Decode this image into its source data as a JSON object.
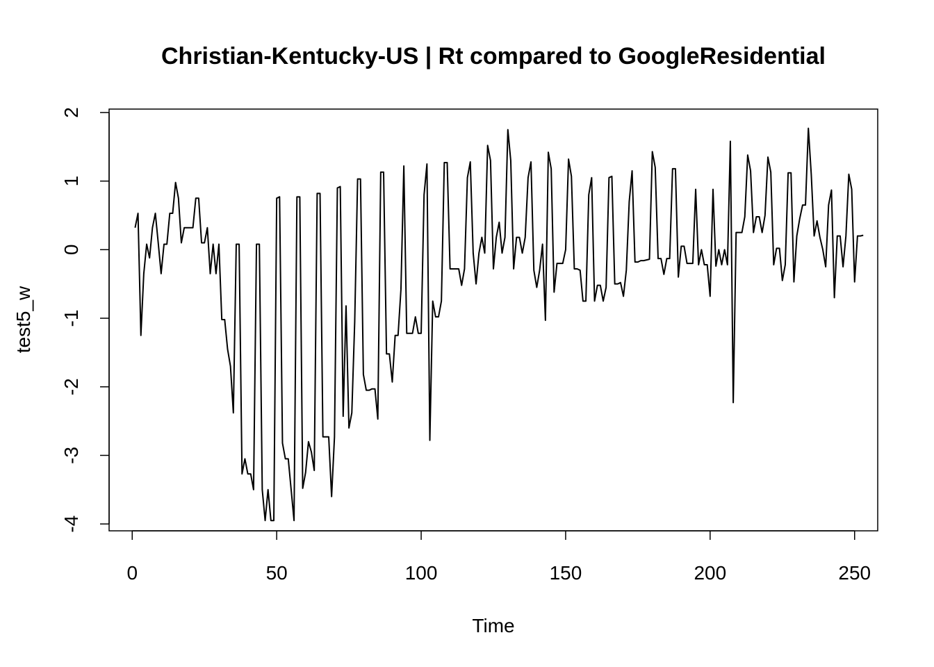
{
  "chart_data": {
    "type": "line",
    "title": "Christian-Kentucky-US | Rt compared to GoogleResidential",
    "xlabel": "Time",
    "ylabel": "test5_w",
    "xlim": [
      -8,
      258
    ],
    "ylim": [
      -4.1,
      2.05
    ],
    "x_ticks": [
      0,
      50,
      100,
      150,
      200,
      250
    ],
    "y_ticks": [
      -4,
      -3,
      -2,
      -1,
      0,
      1,
      2
    ],
    "x_tick_labels": [
      "0",
      "50",
      "100",
      "150",
      "200",
      "250"
    ],
    "y_tick_labels": [
      "-4",
      "-3",
      "-2",
      "-1",
      "0",
      "1",
      "2"
    ],
    "grid": false,
    "legend": "none",
    "line_color": "#000000",
    "x_start": 1,
    "series": [
      {
        "values": [
          0.32,
          0.53,
          -1.25,
          -0.35,
          0.08,
          -0.12,
          0.32,
          0.53,
          0.1,
          -0.35,
          0.08,
          0.08,
          0.53,
          0.53,
          0.98,
          0.75,
          0.1,
          0.32,
          0.32,
          0.32,
          0.32,
          0.75,
          0.75,
          0.1,
          0.1,
          0.32,
          -0.35,
          0.08,
          -0.35,
          0.08,
          -1.02,
          -1.02,
          -1.45,
          -1.7,
          -2.38,
          0.08,
          0.08,
          -3.27,
          -3.05,
          -3.27,
          -3.27,
          -3.5,
          0.08,
          0.08,
          -3.5,
          -3.95,
          -3.5,
          -3.95,
          -3.95,
          0.75,
          0.77,
          -2.82,
          -3.05,
          -3.05,
          -3.5,
          -3.95,
          0.77,
          0.77,
          -3.48,
          -3.25,
          -2.8,
          -2.95,
          -3.22,
          0.82,
          0.82,
          -2.73,
          -2.73,
          -2.73,
          -3.6,
          -2.73,
          0.9,
          0.92,
          -2.43,
          -0.82,
          -2.6,
          -2.38,
          -1.05,
          1.03,
          1.03,
          -1.82,
          -2.05,
          -2.05,
          -2.03,
          -2.03,
          -2.47,
          1.13,
          1.13,
          -1.52,
          -1.52,
          -1.93,
          -1.25,
          -1.25,
          -0.58,
          1.22,
          -1.22,
          -1.22,
          -1.22,
          -0.98,
          -1.22,
          -1.22,
          0.8,
          1.25,
          -2.78,
          -0.75,
          -0.98,
          -0.98,
          -0.75,
          1.27,
          1.27,
          -0.28,
          -0.28,
          -0.28,
          -0.28,
          -0.52,
          -0.28,
          1.05,
          1.28,
          -0.05,
          -0.5,
          -0.05,
          0.18,
          -0.05,
          1.52,
          1.3,
          -0.28,
          0.18,
          0.4,
          -0.05,
          0.18,
          1.75,
          1.3,
          -0.28,
          0.18,
          0.18,
          -0.05,
          0.18,
          1.05,
          1.28,
          -0.3,
          -0.55,
          -0.3,
          0.08,
          -1.03,
          1.42,
          1.18,
          -0.62,
          -0.2,
          -0.2,
          -0.2,
          0.0,
          1.32,
          1.07,
          -0.28,
          -0.28,
          -0.3,
          -0.75,
          -0.75,
          0.8,
          1.05,
          -0.75,
          -0.52,
          -0.52,
          -0.75,
          -0.55,
          1.05,
          1.07,
          -0.5,
          -0.5,
          -0.48,
          -0.68,
          -0.3,
          0.7,
          1.15,
          -0.18,
          -0.18,
          -0.16,
          -0.16,
          -0.15,
          -0.14,
          1.43,
          1.2,
          -0.13,
          -0.13,
          -0.36,
          -0.13,
          -0.13,
          1.18,
          1.18,
          -0.4,
          0.05,
          0.05,
          -0.2,
          -0.2,
          -0.2,
          0.88,
          -0.22,
          0.0,
          -0.22,
          -0.22,
          -0.68,
          0.88,
          -0.24,
          0.0,
          -0.22,
          0.0,
          -0.22,
          1.58,
          -2.23,
          0.25,
          0.25,
          0.25,
          0.48,
          1.38,
          1.15,
          0.25,
          0.48,
          0.48,
          0.25,
          0.5,
          1.35,
          1.13,
          -0.22,
          0.02,
          0.02,
          -0.45,
          -0.22,
          1.12,
          1.12,
          -0.47,
          0.2,
          0.45,
          0.65,
          0.65,
          1.77,
          1.1,
          0.2,
          0.42,
          0.18,
          0.0,
          -0.25,
          0.65,
          0.87,
          -0.7,
          0.2,
          0.2,
          -0.25,
          0.2,
          1.1,
          0.88,
          -0.47,
          0.2,
          0.2,
          0.21
        ]
      }
    ]
  }
}
